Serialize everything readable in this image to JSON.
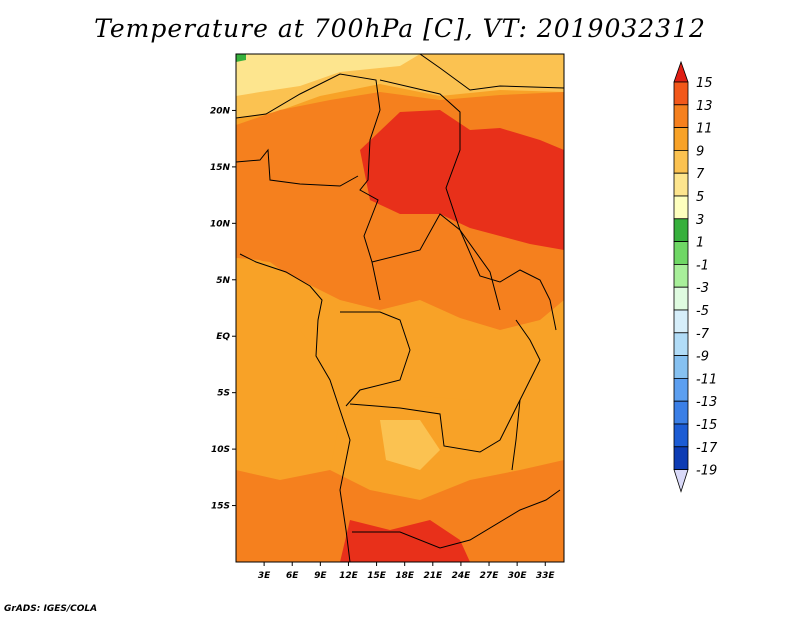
{
  "title": "Temperature at 700hPa [C], VT: 2019032312",
  "credit": "GrADS: IGES/COLA",
  "map": {
    "lat_labels": [
      {
        "lat": 20,
        "label": "20N"
      },
      {
        "lat": 15,
        "label": "15N"
      },
      {
        "lat": 10,
        "label": "10N"
      },
      {
        "lat": 5,
        "label": "5N"
      },
      {
        "lat": 0,
        "label": "EQ"
      },
      {
        "lat": -5,
        "label": "5S"
      },
      {
        "lat": -10,
        "label": "10S"
      },
      {
        "lat": -15,
        "label": "15S"
      }
    ],
    "lon_labels": [
      {
        "lon": 3,
        "label": "3E"
      },
      {
        "lon": 6,
        "label": "6E"
      },
      {
        "lon": 9,
        "label": "9E"
      },
      {
        "lon": 12,
        "label": "12E"
      },
      {
        "lon": 15,
        "label": "15E"
      },
      {
        "lon": 18,
        "label": "18E"
      },
      {
        "lon": 21,
        "label": "21E"
      },
      {
        "lon": 24,
        "label": "24E"
      },
      {
        "lon": 27,
        "label": "27E"
      },
      {
        "lon": 30,
        "label": "30E"
      },
      {
        "lon": 33,
        "label": "33E"
      }
    ],
    "lon_range": [
      0,
      35
    ],
    "lat_range": [
      -20,
      25
    ]
  },
  "colorbar": {
    "labels": [
      "15",
      "13",
      "11",
      "9",
      "7",
      "5",
      "3",
      "1",
      "-1",
      "-3",
      "-5",
      "-7",
      "-9",
      "-11",
      "-13",
      "-15",
      "-17",
      "-19"
    ],
    "colors": [
      "#e8301a",
      "#f2581a",
      "#f5801e",
      "#f8a227",
      "#fbc251",
      "#fde58e",
      "#feffbe",
      "#36b03c",
      "#6fd765",
      "#a8ef9a",
      "#dffbe0",
      "#d6eefa",
      "#b1dcf7",
      "#86c1f1",
      "#5c9ff0",
      "#3b7fe6",
      "#1c5cd4",
      "#0d3cb4",
      "#06227c"
    ],
    "over_color": "#e01e14",
    "under_color": "#d9d9f8"
  }
}
